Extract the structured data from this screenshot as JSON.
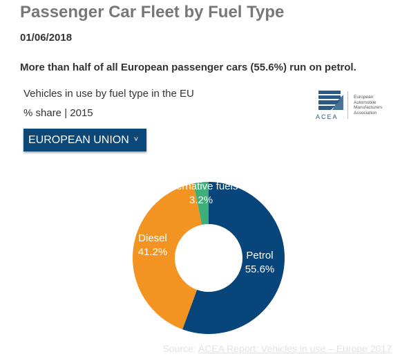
{
  "header": {
    "title": "Passenger Car Fleet by Fuel Type",
    "date": "01/06/2018",
    "headline": "More than half of all European passenger cars (55.6%) run on petrol."
  },
  "selector": {
    "label": "EUROPEAN UNION",
    "chevron_icon": "chevron-down-icon"
  },
  "logo": {
    "wordmark": "ACEA",
    "text": "European\nAutomobile\nManufacturers\nAssociation"
  },
  "colors": {
    "petrol": "#07457a",
    "diesel": "#f39422",
    "alternative": "#3eaf78",
    "dropdown_bg": "#0b4777"
  },
  "chart_data": {
    "type": "pie",
    "title": "Vehicles in use by fuel type in the EU",
    "subtitle": "% share | 2015",
    "donut": true,
    "slices": [
      {
        "name": "Petrol",
        "value": 55.6,
        "label": "55.6%",
        "color": "#07457a"
      },
      {
        "name": "Diesel",
        "value": 41.2,
        "label": "41.2%",
        "color": "#f39422"
      },
      {
        "name": "Alternative fuels",
        "value": 3.2,
        "label": "3.2%",
        "color": "#3eaf78"
      }
    ]
  },
  "source": {
    "prefix": "Source:",
    "link_text": "ACEA Report: Vehicles in use – Europe 2017"
  }
}
